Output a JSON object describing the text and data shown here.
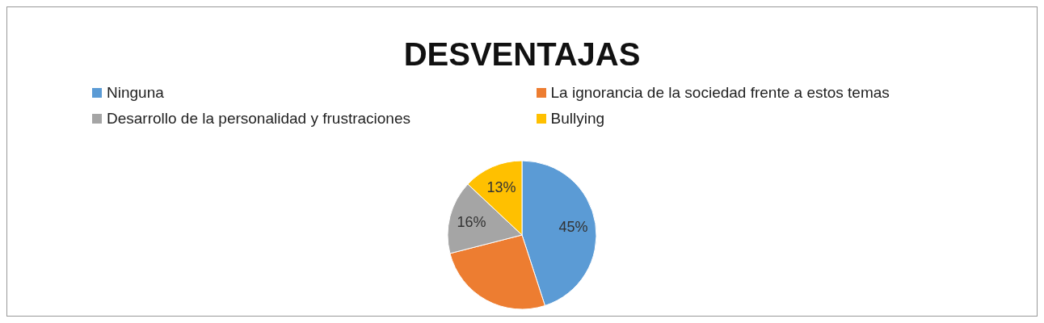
{
  "chart_data": {
    "type": "pie",
    "title": "DESVENTAJAS",
    "categories": [
      "Ninguna",
      "La ignorancia de la sociedad frente a estos temas",
      "Desarrollo de la personalidad y frustraciones",
      "Bullying"
    ],
    "values": [
      45,
      26,
      16,
      13
    ],
    "colors": [
      "#5b9bd5",
      "#ed7d31",
      "#a5a5a5",
      "#ffc000"
    ],
    "value_labels": [
      "45%",
      null,
      "16%",
      "13%"
    ],
    "legend": "top"
  }
}
